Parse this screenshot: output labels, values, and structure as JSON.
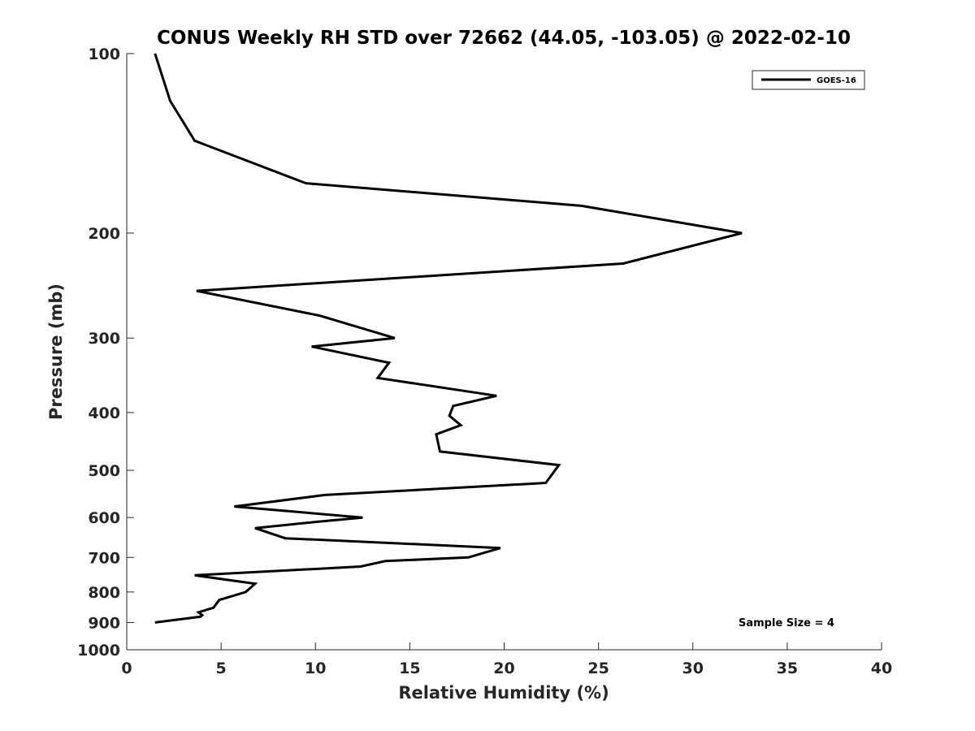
{
  "chart_data": {
    "type": "line",
    "title": "CONUS Weekly RH STD over 72662 (44.05, -103.05) @ 2022-02-10",
    "xlabel": "Relative Humidity (%)",
    "ylabel": "Pressure (mb)",
    "xlim": [
      0,
      40
    ],
    "ylim": [
      100,
      1000
    ],
    "yscale": "log",
    "yaxis_reversed": true,
    "x_ticks": [
      0,
      5,
      10,
      15,
      20,
      25,
      30,
      35,
      40
    ],
    "x_tick_labels": [
      "0",
      "5",
      "10",
      "15",
      "20",
      "25",
      "30",
      "35",
      "40"
    ],
    "y_ticks": [
      100,
      200,
      300,
      400,
      500,
      600,
      700,
      800,
      900,
      1000
    ],
    "y_tick_labels": [
      "100",
      "200",
      "300",
      "400",
      "500",
      "600",
      "700",
      "800",
      "900",
      "1000"
    ],
    "grid": false,
    "legend_position": "top-right",
    "series": [
      {
        "name": "GOES-16",
        "color": "#000000",
        "x": [
          1.5,
          2.3,
          3.6,
          9.5,
          24.1,
          32.6,
          26.3,
          3.7,
          10.2,
          14.2,
          9.8,
          13.9,
          13.3,
          19.6,
          17.3,
          17.1,
          17.7,
          16.4,
          16.6,
          22.9,
          22.7,
          22.2,
          10.5,
          5.7,
          12.5,
          10.1,
          6.8,
          8.4,
          19.8,
          18.1,
          13.7,
          12.4,
          3.6,
          6.8,
          6.3,
          4.9,
          4.6,
          3.8,
          4.0,
          3.9,
          1.5
        ],
        "y": [
          100,
          120,
          140,
          165,
          180,
          200,
          225,
          250,
          275,
          300,
          310,
          330,
          350,
          375,
          390,
          405,
          420,
          435,
          465,
          490,
          500,
          525,
          550,
          575,
          600,
          610,
          625,
          650,
          675,
          700,
          710,
          725,
          750,
          775,
          800,
          825,
          850,
          865,
          875,
          880,
          900
        ]
      }
    ],
    "annotations": [
      "Sample Size = 4"
    ]
  }
}
